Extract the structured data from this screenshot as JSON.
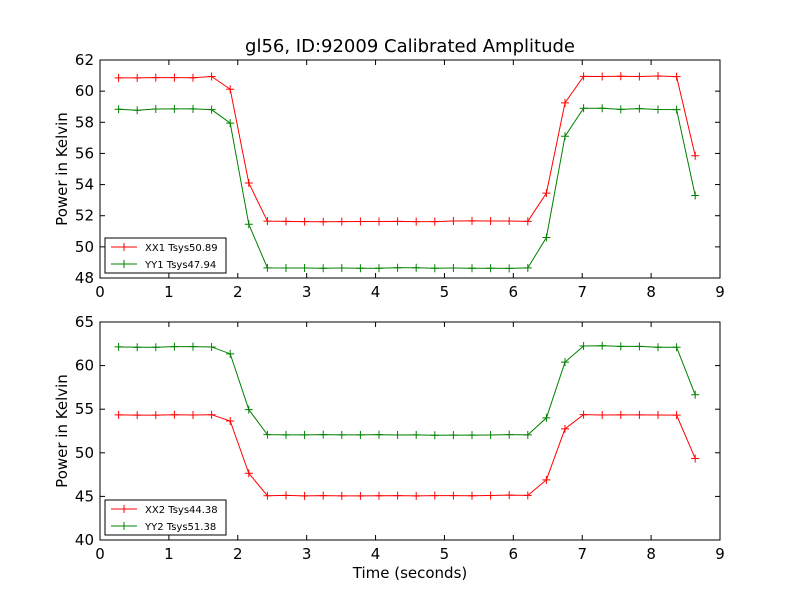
{
  "title": "gl56, ID:92009 Calibrated Amplitude",
  "xlabel": "Time (seconds)",
  "chart_data": [
    {
      "type": "line",
      "title": "gl56, ID:92009 Calibrated Amplitude",
      "xlabel": "",
      "ylabel": "Power in Kelvin",
      "xlim": [
        0,
        9
      ],
      "ylim": [
        48,
        62
      ],
      "xticks": [
        "0",
        "1",
        "2",
        "3",
        "4",
        "5",
        "6",
        "7",
        "8",
        "9"
      ],
      "yticks": [
        "48",
        "50",
        "52",
        "54",
        "56",
        "58",
        "60",
        "62"
      ],
      "grid": false,
      "legend_position": "lower-left",
      "x": [
        0.27,
        0.54,
        0.81,
        1.08,
        1.35,
        1.62,
        1.89,
        2.16,
        2.43,
        2.7,
        2.97,
        3.24,
        3.51,
        3.78,
        4.05,
        4.32,
        4.59,
        4.86,
        5.13,
        5.4,
        5.67,
        5.94,
        6.21,
        6.48,
        6.75,
        7.02,
        7.29,
        7.56,
        7.83,
        8.1,
        8.37,
        8.64
      ],
      "series": [
        {
          "name": "XX1 Tsys50.89",
          "color": "#ff0000",
          "values": [
            60.85,
            60.85,
            60.87,
            60.87,
            60.86,
            60.94,
            60.12,
            54.1,
            51.65,
            51.64,
            51.62,
            51.61,
            51.62,
            51.63,
            51.63,
            51.64,
            51.62,
            51.62,
            51.66,
            51.67,
            51.66,
            51.66,
            51.64,
            53.45,
            59.25,
            60.95,
            60.94,
            60.96,
            60.94,
            60.97,
            60.93,
            55.85
          ]
        },
        {
          "name": "YY1 Tsys47.94",
          "color": "#008000",
          "values": [
            58.84,
            58.77,
            58.85,
            58.86,
            58.86,
            58.81,
            57.95,
            51.45,
            48.65,
            48.64,
            48.64,
            48.63,
            48.64,
            48.63,
            48.63,
            48.66,
            48.66,
            48.63,
            48.64,
            48.63,
            48.63,
            48.62,
            48.65,
            50.6,
            57.1,
            58.9,
            58.9,
            58.83,
            58.88,
            58.82,
            58.81,
            53.3
          ]
        }
      ]
    },
    {
      "type": "line",
      "title": "",
      "xlabel": "Time (seconds)",
      "ylabel": "Power in Kelvin",
      "xlim": [
        0,
        9
      ],
      "ylim": [
        40,
        65
      ],
      "xticks": [
        "0",
        "1",
        "2",
        "3",
        "4",
        "5",
        "6",
        "7",
        "8",
        "9"
      ],
      "yticks": [
        "40",
        "45",
        "50",
        "55",
        "60",
        "65"
      ],
      "grid": false,
      "legend_position": "lower-left",
      "x": [
        0.27,
        0.54,
        0.81,
        1.08,
        1.35,
        1.62,
        1.89,
        2.16,
        2.43,
        2.7,
        2.97,
        3.24,
        3.51,
        3.78,
        4.05,
        4.32,
        4.59,
        4.86,
        5.13,
        5.4,
        5.67,
        5.94,
        6.21,
        6.48,
        6.75,
        7.02,
        7.29,
        7.56,
        7.83,
        8.1,
        8.37,
        8.64
      ],
      "series": [
        {
          "name": "XX2 Tsys44.38",
          "color": "#ff0000",
          "values": [
            54.35,
            54.32,
            54.32,
            54.36,
            54.34,
            54.37,
            53.65,
            47.65,
            45.08,
            45.12,
            45.06,
            45.09,
            45.06,
            45.06,
            45.07,
            45.09,
            45.06,
            45.09,
            45.09,
            45.08,
            45.11,
            45.14,
            45.12,
            46.9,
            52.75,
            54.38,
            54.34,
            54.35,
            54.35,
            54.34,
            54.32,
            49.35
          ]
        },
        {
          "name": "YY2 Tsys51.38",
          "color": "#008000",
          "values": [
            62.15,
            62.1,
            62.1,
            62.17,
            62.17,
            62.14,
            61.35,
            54.95,
            52.08,
            52.05,
            52.05,
            52.09,
            52.05,
            52.06,
            52.08,
            52.04,
            52.06,
            52.01,
            52.03,
            52.03,
            52.04,
            52.08,
            52.05,
            54.0,
            60.4,
            62.25,
            62.27,
            62.2,
            62.2,
            62.1,
            62.1,
            56.65
          ]
        }
      ]
    }
  ]
}
